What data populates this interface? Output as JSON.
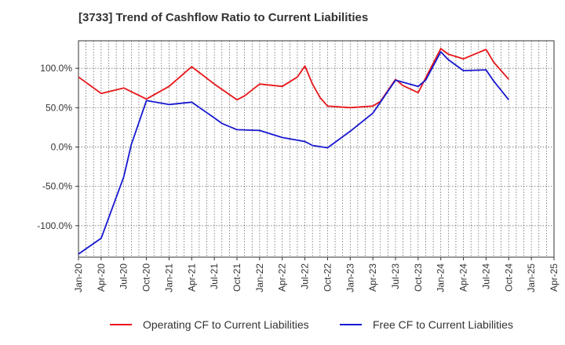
{
  "chart_data": {
    "type": "line",
    "title": "[3733]  Trend of Cashflow Ratio to Current Liabilities",
    "xlabel": "",
    "ylabel": "",
    "ylim": [
      -140,
      135
    ],
    "y_ticks": [
      100,
      50,
      0,
      -50,
      -100
    ],
    "y_tick_labels": [
      "100.0%",
      "50.0%",
      "0.0%",
      "-50.0%",
      "-100.0%"
    ],
    "x_tick_labels": [
      "Jan-20",
      "Apr-20",
      "Jul-20",
      "Oct-20",
      "Jan-21",
      "Apr-21",
      "Jul-21",
      "Oct-21",
      "Jan-22",
      "Apr-22",
      "Jul-22",
      "Oct-22",
      "Jan-23",
      "Apr-23",
      "Jul-23",
      "Oct-23",
      "Jan-24",
      "Apr-24",
      "Jul-24",
      "Oct-24",
      "Jan-25",
      "Apr-25"
    ],
    "grid": true,
    "legend_position": "bottom",
    "series": [
      {
        "name": "Operating CF to Current Liabilities",
        "color": "#e8161a",
        "points": [
          [
            "Jan-20",
            89
          ],
          [
            "Apr-20",
            68
          ],
          [
            "Jul-20",
            75
          ],
          [
            "Oct-20",
            61
          ],
          [
            "Jan-21",
            77
          ],
          [
            "Apr-21",
            102
          ],
          [
            "Jul-21",
            80
          ],
          [
            "Oct-21",
            60
          ],
          [
            "Nov-21",
            65
          ],
          [
            "Jan-22",
            80
          ],
          [
            "Apr-22",
            77
          ],
          [
            "Jun-22",
            89
          ],
          [
            "Jul-22",
            103
          ],
          [
            "Aug-22",
            80
          ],
          [
            "Sep-22",
            63
          ],
          [
            "Oct-22",
            52
          ],
          [
            "Jan-23",
            50
          ],
          [
            "Apr-23",
            52
          ],
          [
            "May-23",
            58
          ],
          [
            "Jul-23",
            86
          ],
          [
            "Aug-23",
            78
          ],
          [
            "Oct-23",
            69
          ],
          [
            "Nov-23",
            88
          ],
          [
            "Jan-24",
            125
          ],
          [
            "Feb-24",
            118
          ],
          [
            "Apr-24",
            112
          ],
          [
            "Jul-24",
            124
          ],
          [
            "Aug-24",
            108
          ],
          [
            "Oct-24",
            86
          ]
        ]
      },
      {
        "name": "Free CF to Current Liabilities",
        "color": "#1818d0",
        "points": [
          [
            "Jan-20",
            -136
          ],
          [
            "Apr-20",
            -116
          ],
          [
            "Jul-20",
            -38
          ],
          [
            "Aug-20",
            3
          ],
          [
            "Oct-20",
            59
          ],
          [
            "Jan-21",
            54
          ],
          [
            "Apr-21",
            57
          ],
          [
            "Jul-21",
            37
          ],
          [
            "Aug-21",
            30
          ],
          [
            "Oct-21",
            22
          ],
          [
            "Jan-22",
            21
          ],
          [
            "Apr-22",
            12
          ],
          [
            "Jul-22",
            7
          ],
          [
            "Aug-22",
            2
          ],
          [
            "Oct-22",
            -1
          ],
          [
            "Jan-23",
            20
          ],
          [
            "Apr-23",
            43
          ],
          [
            "May-23",
            57
          ],
          [
            "Jul-23",
            85
          ],
          [
            "Oct-23",
            77
          ],
          [
            "Nov-23",
            85
          ],
          [
            "Jan-24",
            121
          ],
          [
            "Feb-24",
            111
          ],
          [
            "Apr-24",
            97
          ],
          [
            "Jul-24",
            98
          ],
          [
            "Aug-24",
            84
          ],
          [
            "Oct-24",
            60
          ]
        ]
      }
    ]
  }
}
